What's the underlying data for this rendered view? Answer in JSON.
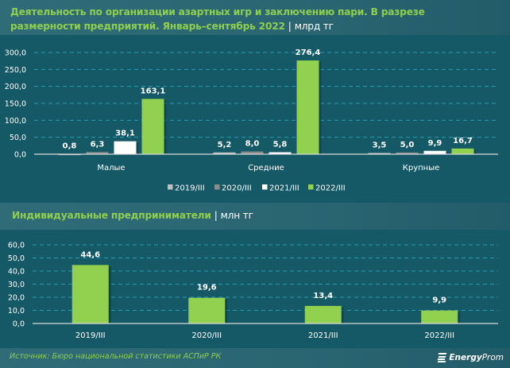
{
  "header": {
    "title": "Деятельность по организации азартных игр и заключению пари. В разрезе размерности предприятий. Январь–сентябрь 2022",
    "separator": "|",
    "unit": "млрд тг"
  },
  "section2": {
    "title": "Индивидуальные предприниматели",
    "separator": "|",
    "unit": "млн тг"
  },
  "footer": {
    "source": "Источник: Бюро национальной статистики АСПиР РК",
    "logo_bold": "Energy",
    "logo_regular": "Prom"
  },
  "colors": {
    "background": "#155866",
    "accent_green": "#92d050",
    "s2019": "#bfbfbf",
    "s2020": "#8c8c8c",
    "s2021": "#ffffff",
    "s2022": "#92d050",
    "grid": "#2a9bb5"
  },
  "chart_data": [
    {
      "type": "bar",
      "title": "Деятельность по организации азартных игр и заключению пари. В разрезе размерности предприятий. Январь–сентябрь 2022",
      "unit": "млрд тг",
      "categories": [
        "Малые",
        "Средние",
        "Крупные"
      ],
      "series": [
        {
          "name": "2019/III",
          "color": "#bfbfbf",
          "values": [
            0.8,
            5.2,
            3.5
          ],
          "labels": [
            "0,8",
            "5,2",
            "3,5"
          ]
        },
        {
          "name": "2020/III",
          "color": "#8c8c8c",
          "values": [
            6.3,
            8.0,
            5.0
          ],
          "labels": [
            "6,3",
            "8,0",
            "5,0"
          ]
        },
        {
          "name": "2021/III",
          "color": "#ffffff",
          "values": [
            38.1,
            5.8,
            9.9
          ],
          "labels": [
            "38,1",
            "5,8",
            "9,9"
          ]
        },
        {
          "name": "2022/III",
          "color": "#92d050",
          "values": [
            163.1,
            276.4,
            16.7
          ],
          "labels": [
            "163,1",
            "276,4",
            "16,7"
          ]
        }
      ],
      "ylim": [
        0,
        300
      ],
      "yticks": [
        0,
        50,
        100,
        150,
        200,
        250,
        300
      ],
      "ytick_labels": [
        "0,0",
        "50,0",
        "100,0",
        "150,0",
        "200,0",
        "250,0",
        "300,0"
      ],
      "grid": true,
      "legend": "bottom-center"
    },
    {
      "type": "bar",
      "title": "Индивидуальные предприниматели",
      "unit": "млн тг",
      "categories": [
        "2019/III",
        "2020/III",
        "2021/III",
        "2022/III"
      ],
      "values": [
        44.6,
        19.6,
        13.4,
        9.9
      ],
      "labels": [
        "44,6",
        "19,6",
        "13,4",
        "9,9"
      ],
      "color": "#92d050",
      "ylim": [
        0,
        60
      ],
      "yticks": [
        0,
        10,
        20,
        30,
        40,
        50,
        60
      ],
      "ytick_labels": [
        "0,0",
        "10,0",
        "20,0",
        "30,0",
        "40,0",
        "50,0",
        "60,0"
      ],
      "grid": true
    }
  ]
}
